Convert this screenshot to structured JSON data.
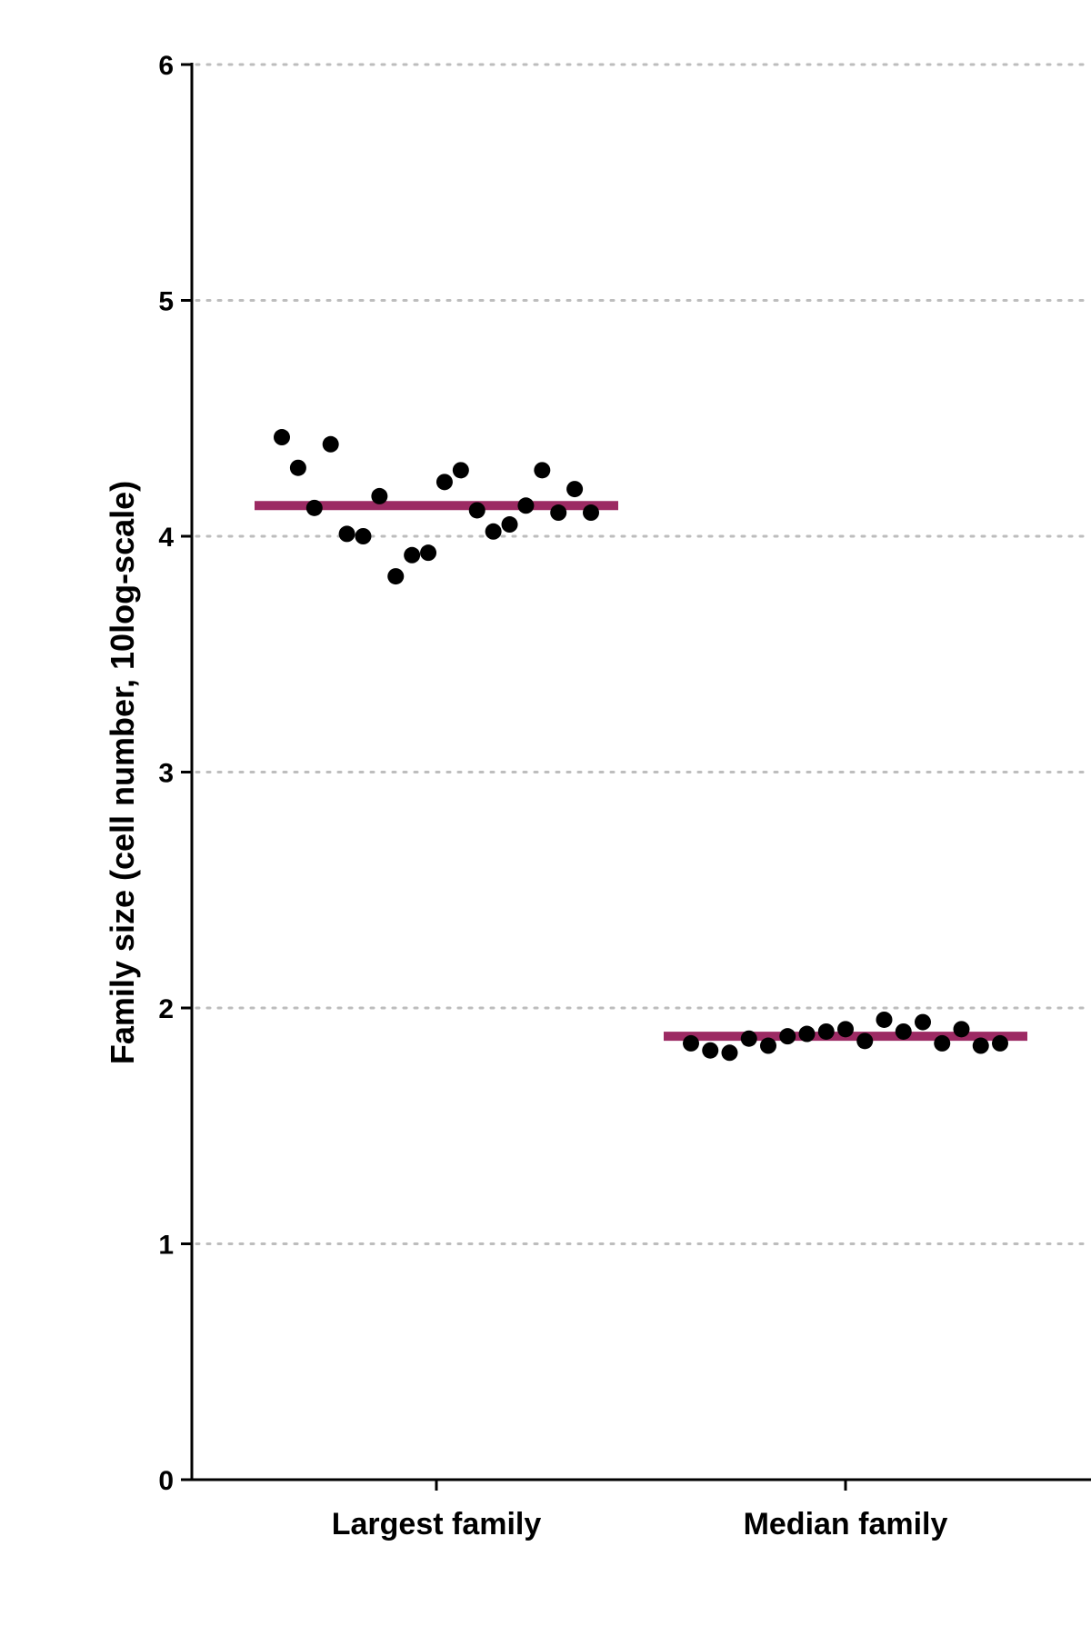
{
  "chart_data": {
    "type": "scatter",
    "title": "",
    "xlabel": "",
    "ylabel": "Family size (cell number, 10log-scale)",
    "ylim": [
      0,
      6
    ],
    "yticks": [
      0,
      1,
      2,
      3,
      4,
      5,
      6
    ],
    "grid": "horizontal-dotted",
    "categories": [
      "Largest family",
      "Median family"
    ],
    "series": [
      {
        "category": "Largest family",
        "values": [
          4.42,
          4.29,
          4.12,
          4.39,
          4.01,
          4.0,
          4.17,
          3.83,
          3.92,
          3.93,
          4.23,
          4.28,
          4.11,
          4.02,
          4.05,
          4.13,
          4.28,
          4.1,
          4.2,
          4.1
        ],
        "mean": 4.13
      },
      {
        "category": "Median family",
        "values": [
          1.85,
          1.82,
          1.81,
          1.87,
          1.84,
          1.88,
          1.89,
          1.9,
          1.91,
          1.86,
          1.95,
          1.9,
          1.94,
          1.85,
          1.91,
          1.84,
          1.85
        ],
        "mean": 1.88
      }
    ],
    "colors": {
      "points": "#000000",
      "mean_line": "#9c2a63",
      "grid": "#bdbdbd",
      "axis": "#000000"
    }
  }
}
